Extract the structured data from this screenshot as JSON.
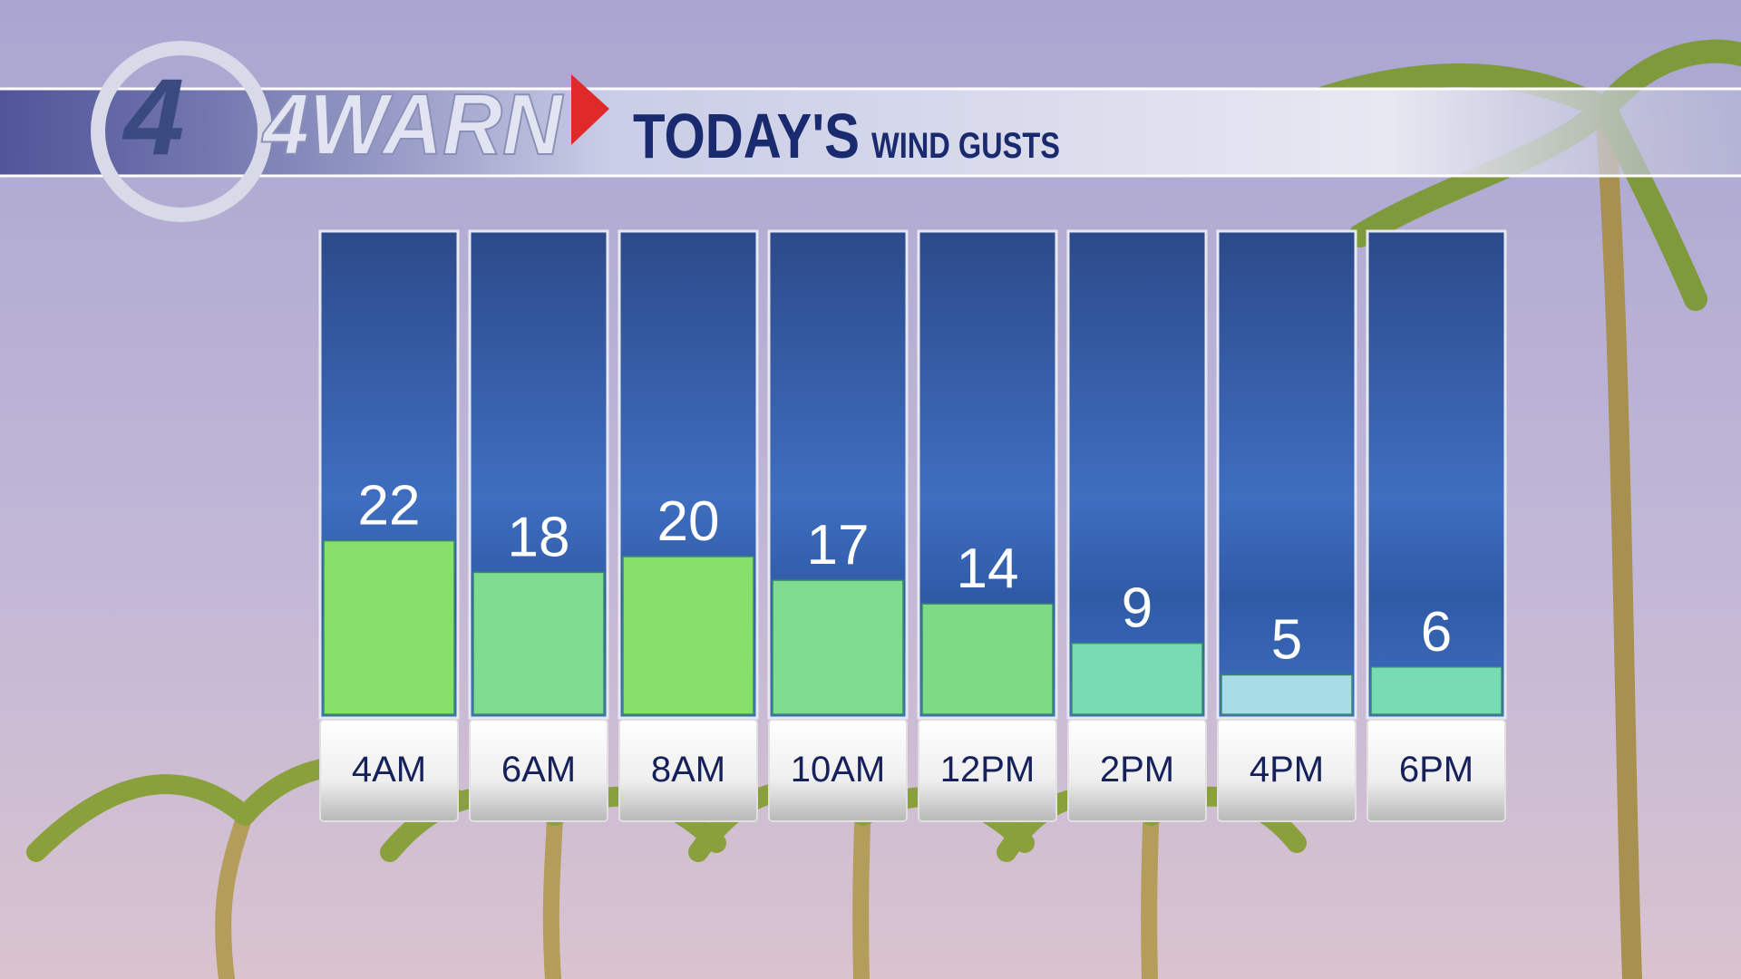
{
  "chart_data": {
    "type": "bar",
    "logo": "4WARN",
    "title": "TODAY'S",
    "subtitle": "WIND GUSTS",
    "categories": [
      "4AM",
      "6AM",
      "8AM",
      "10AM",
      "12PM",
      "2PM",
      "4PM",
      "6PM"
    ],
    "values": [
      22,
      18,
      20,
      17,
      14,
      9,
      5,
      6
    ],
    "colors": [
      "#86e06a",
      "#7fdc8e",
      "#86e06a",
      "#7fdc8e",
      "#7fda86",
      "#77dcb4",
      "#a8dde8",
      "#77dcb4"
    ]
  }
}
